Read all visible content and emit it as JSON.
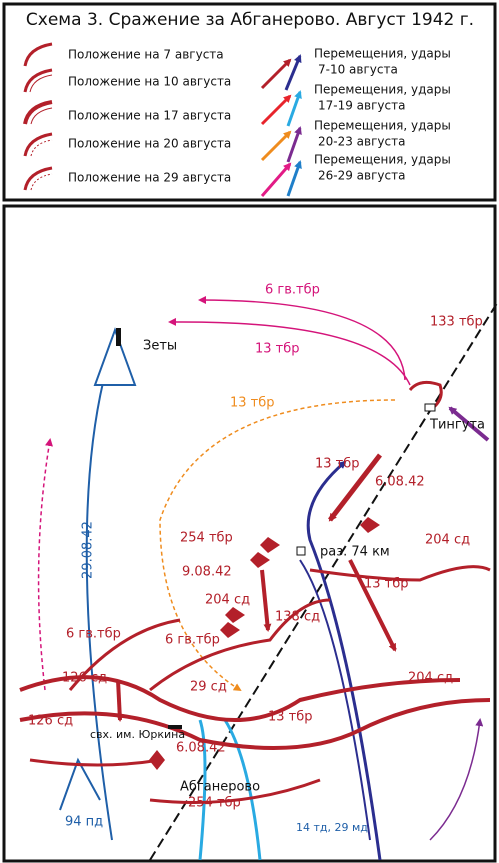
{
  "title": "Схема 3. Сражение за Абганерово. Август 1942 г.",
  "legend": {
    "positions": [
      "Положение на 7 августа",
      "Положение на 10 августа",
      "Положение на 17 августа",
      "Положение на 20 августа",
      "Положение на 29 августа"
    ],
    "movements": [
      {
        "lines": [
          "Перемещения, удары",
          "7-10 августа"
        ]
      },
      {
        "lines": [
          "Перемещения, удары",
          "17-19 августа"
        ]
      },
      {
        "lines": [
          "Перемещения, удары",
          "20-23 августа"
        ]
      },
      {
        "lines": [
          "Перемещения, удары",
          "26-29 августа"
        ]
      }
    ]
  },
  "map_labels": [
    "6 гв.тбр",
    "Зеты",
    "13 тбр",
    "133 тбр",
    "13 тбр",
    "Тингута",
    "13 тбр",
    "6.08.42",
    "254 тбр",
    "раз. 74 км",
    "204 сд",
    "9.08.42",
    "29.08.42",
    "204 сд",
    "138 сд",
    "13 тбр",
    "6 гв.тбр",
    "6 гв.тбр",
    "126 сд",
    "29 сд",
    "126 сд",
    "13 тбр",
    "204 сд",
    "свх. им. Юркина",
    "6.08.42",
    "Абганерово",
    "254 тбр",
    "94 пд",
    "14 тд, 29 мд"
  ]
}
